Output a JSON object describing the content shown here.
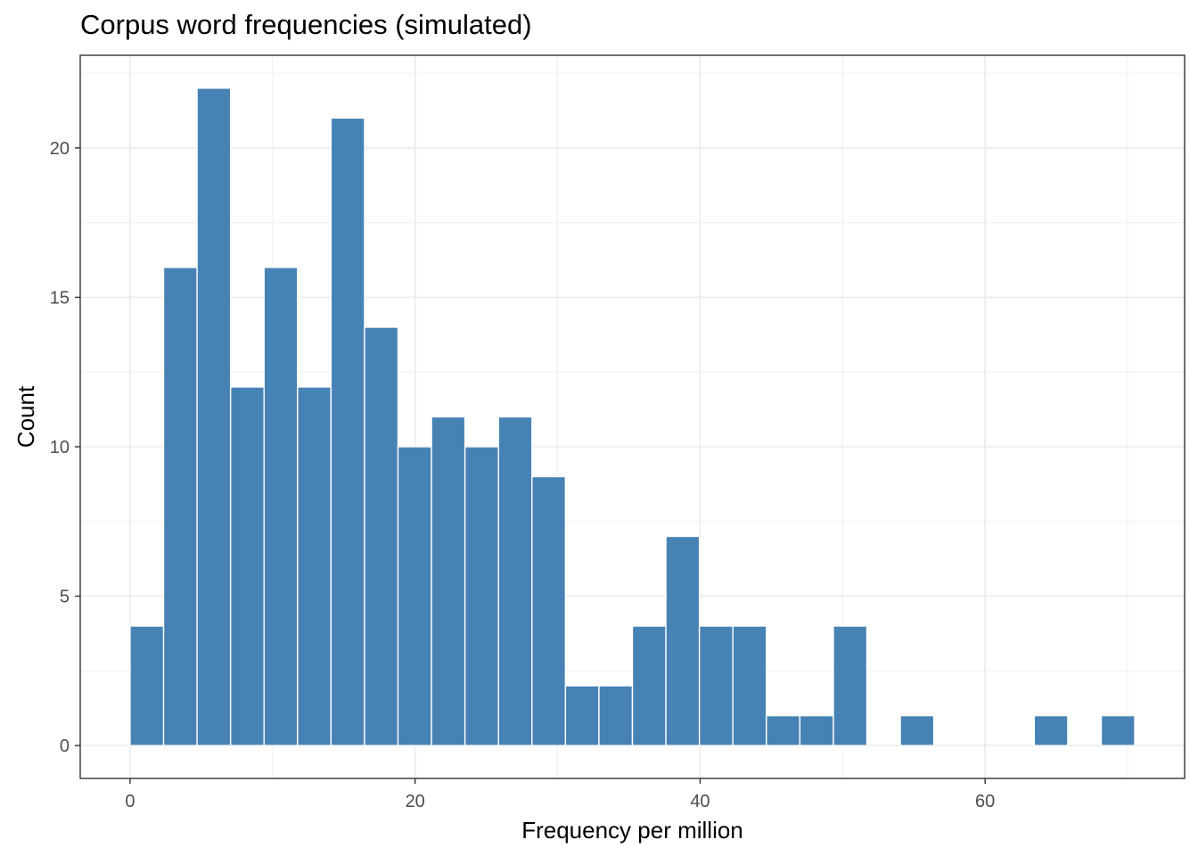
{
  "chart_data": {
    "type": "bar",
    "title": "Corpus word frequencies (simulated)",
    "xlabel": "Frequency per million",
    "ylabel": "Count",
    "bin_width": 2.35,
    "bins": [
      {
        "x0": 0.0,
        "count": 4
      },
      {
        "x0": 2.35,
        "count": 16
      },
      {
        "x0": 4.7,
        "count": 22
      },
      {
        "x0": 7.05,
        "count": 12
      },
      {
        "x0": 9.4,
        "count": 16
      },
      {
        "x0": 11.75,
        "count": 12
      },
      {
        "x0": 14.1,
        "count": 21
      },
      {
        "x0": 16.45,
        "count": 14
      },
      {
        "x0": 18.8,
        "count": 10
      },
      {
        "x0": 21.15,
        "count": 11
      },
      {
        "x0": 23.5,
        "count": 10
      },
      {
        "x0": 25.85,
        "count": 11
      },
      {
        "x0": 28.2,
        "count": 9
      },
      {
        "x0": 30.55,
        "count": 2
      },
      {
        "x0": 32.9,
        "count": 2
      },
      {
        "x0": 35.25,
        "count": 4
      },
      {
        "x0": 37.6,
        "count": 7
      },
      {
        "x0": 39.95,
        "count": 4
      },
      {
        "x0": 42.3,
        "count": 4
      },
      {
        "x0": 44.65,
        "count": 1
      },
      {
        "x0": 47.0,
        "count": 1
      },
      {
        "x0": 49.35,
        "count": 4
      },
      {
        "x0": 51.7,
        "count": 0
      },
      {
        "x0": 54.05,
        "count": 1
      },
      {
        "x0": 56.4,
        "count": 0
      },
      {
        "x0": 58.75,
        "count": 0
      },
      {
        "x0": 61.1,
        "count": 0
      },
      {
        "x0": 63.45,
        "count": 1
      },
      {
        "x0": 65.8,
        "count": 0
      },
      {
        "x0": 68.15,
        "count": 1
      }
    ],
    "xlim": [
      -3.5,
      74
    ],
    "ylim": [
      -1.1,
      23.1
    ],
    "x_ticks": [
      0,
      20,
      40,
      60
    ],
    "y_ticks": [
      0,
      5,
      10,
      15,
      20
    ],
    "bar_color": "#4682B4",
    "bar_outline": "#ffffff",
    "grid": true,
    "grid_color": "#ebebeb",
    "panel_border_color": "#333333"
  }
}
